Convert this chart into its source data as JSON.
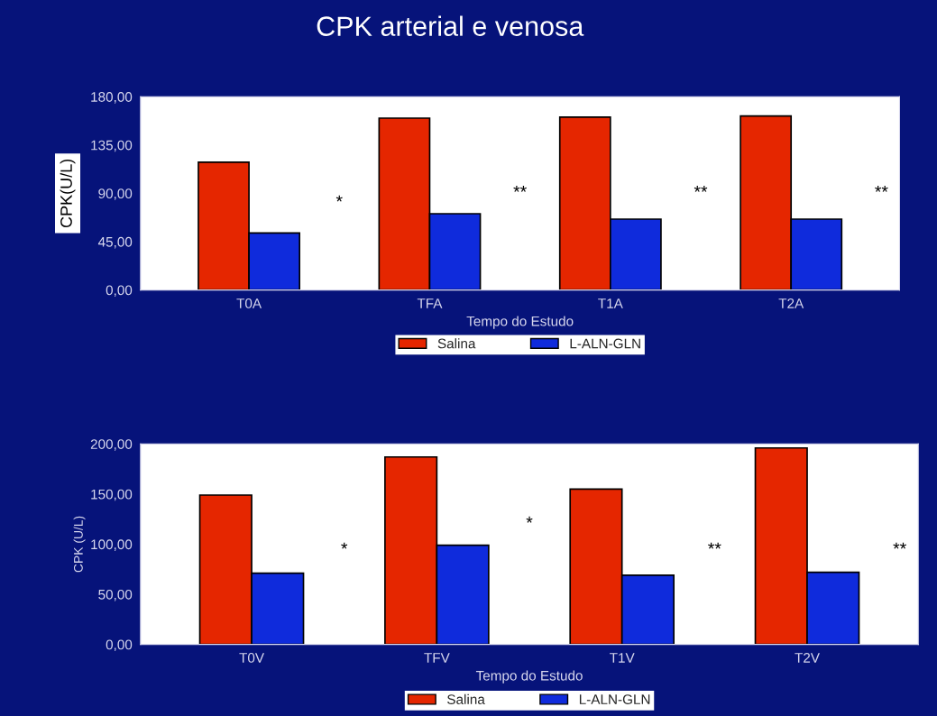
{
  "chart_data": [
    {
      "type": "bar",
      "title": "CPK arterial e venosa",
      "xlabel": "Tempo do Estudo",
      "ylabel": "CPK(U/L)",
      "categories": [
        "T0A",
        "TFA",
        "T1A",
        "T2A"
      ],
      "series": [
        {
          "name": "Salina",
          "color": "#e52600",
          "values": [
            119,
            160,
            161,
            162
          ]
        },
        {
          "name": "L-ALN-GLN",
          "color": "#0f2bdc",
          "values": [
            53,
            71,
            66,
            66
          ]
        }
      ],
      "ylim": [
        0,
        180
      ],
      "yticks": [
        {
          "value": 0,
          "label": "0,00"
        },
        {
          "value": 45,
          "label": "45,00"
        },
        {
          "value": 90,
          "label": "90,00"
        },
        {
          "value": 135,
          "label": "135,00"
        },
        {
          "value": 180,
          "label": "180,00"
        }
      ],
      "annotations": [
        "*",
        "**",
        "**",
        "**"
      ],
      "grid": false,
      "legend": "bottom"
    },
    {
      "type": "bar",
      "xlabel": "Tempo do Estudo",
      "ylabel": "CPK (U/L)",
      "categories": [
        "T0V",
        "TFV",
        "T1V",
        "T2V"
      ],
      "series": [
        {
          "name": "Salina",
          "color": "#e52600",
          "values": [
            149,
            187,
            155,
            196
          ]
        },
        {
          "name": "L-ALN-GLN",
          "color": "#0f2bdc",
          "values": [
            71,
            99,
            69,
            72
          ]
        }
      ],
      "ylim": [
        0,
        200
      ],
      "yticks": [
        {
          "value": 0,
          "label": "0,00"
        },
        {
          "value": 50,
          "label": "50,00"
        },
        {
          "value": 100,
          "label": "100,00"
        },
        {
          "value": 150,
          "label": "150,00"
        },
        {
          "value": 200,
          "label": "200,00"
        }
      ],
      "annotations": [
        "*",
        "*",
        "**",
        "**"
      ],
      "grid": false,
      "legend": "bottom"
    }
  ]
}
